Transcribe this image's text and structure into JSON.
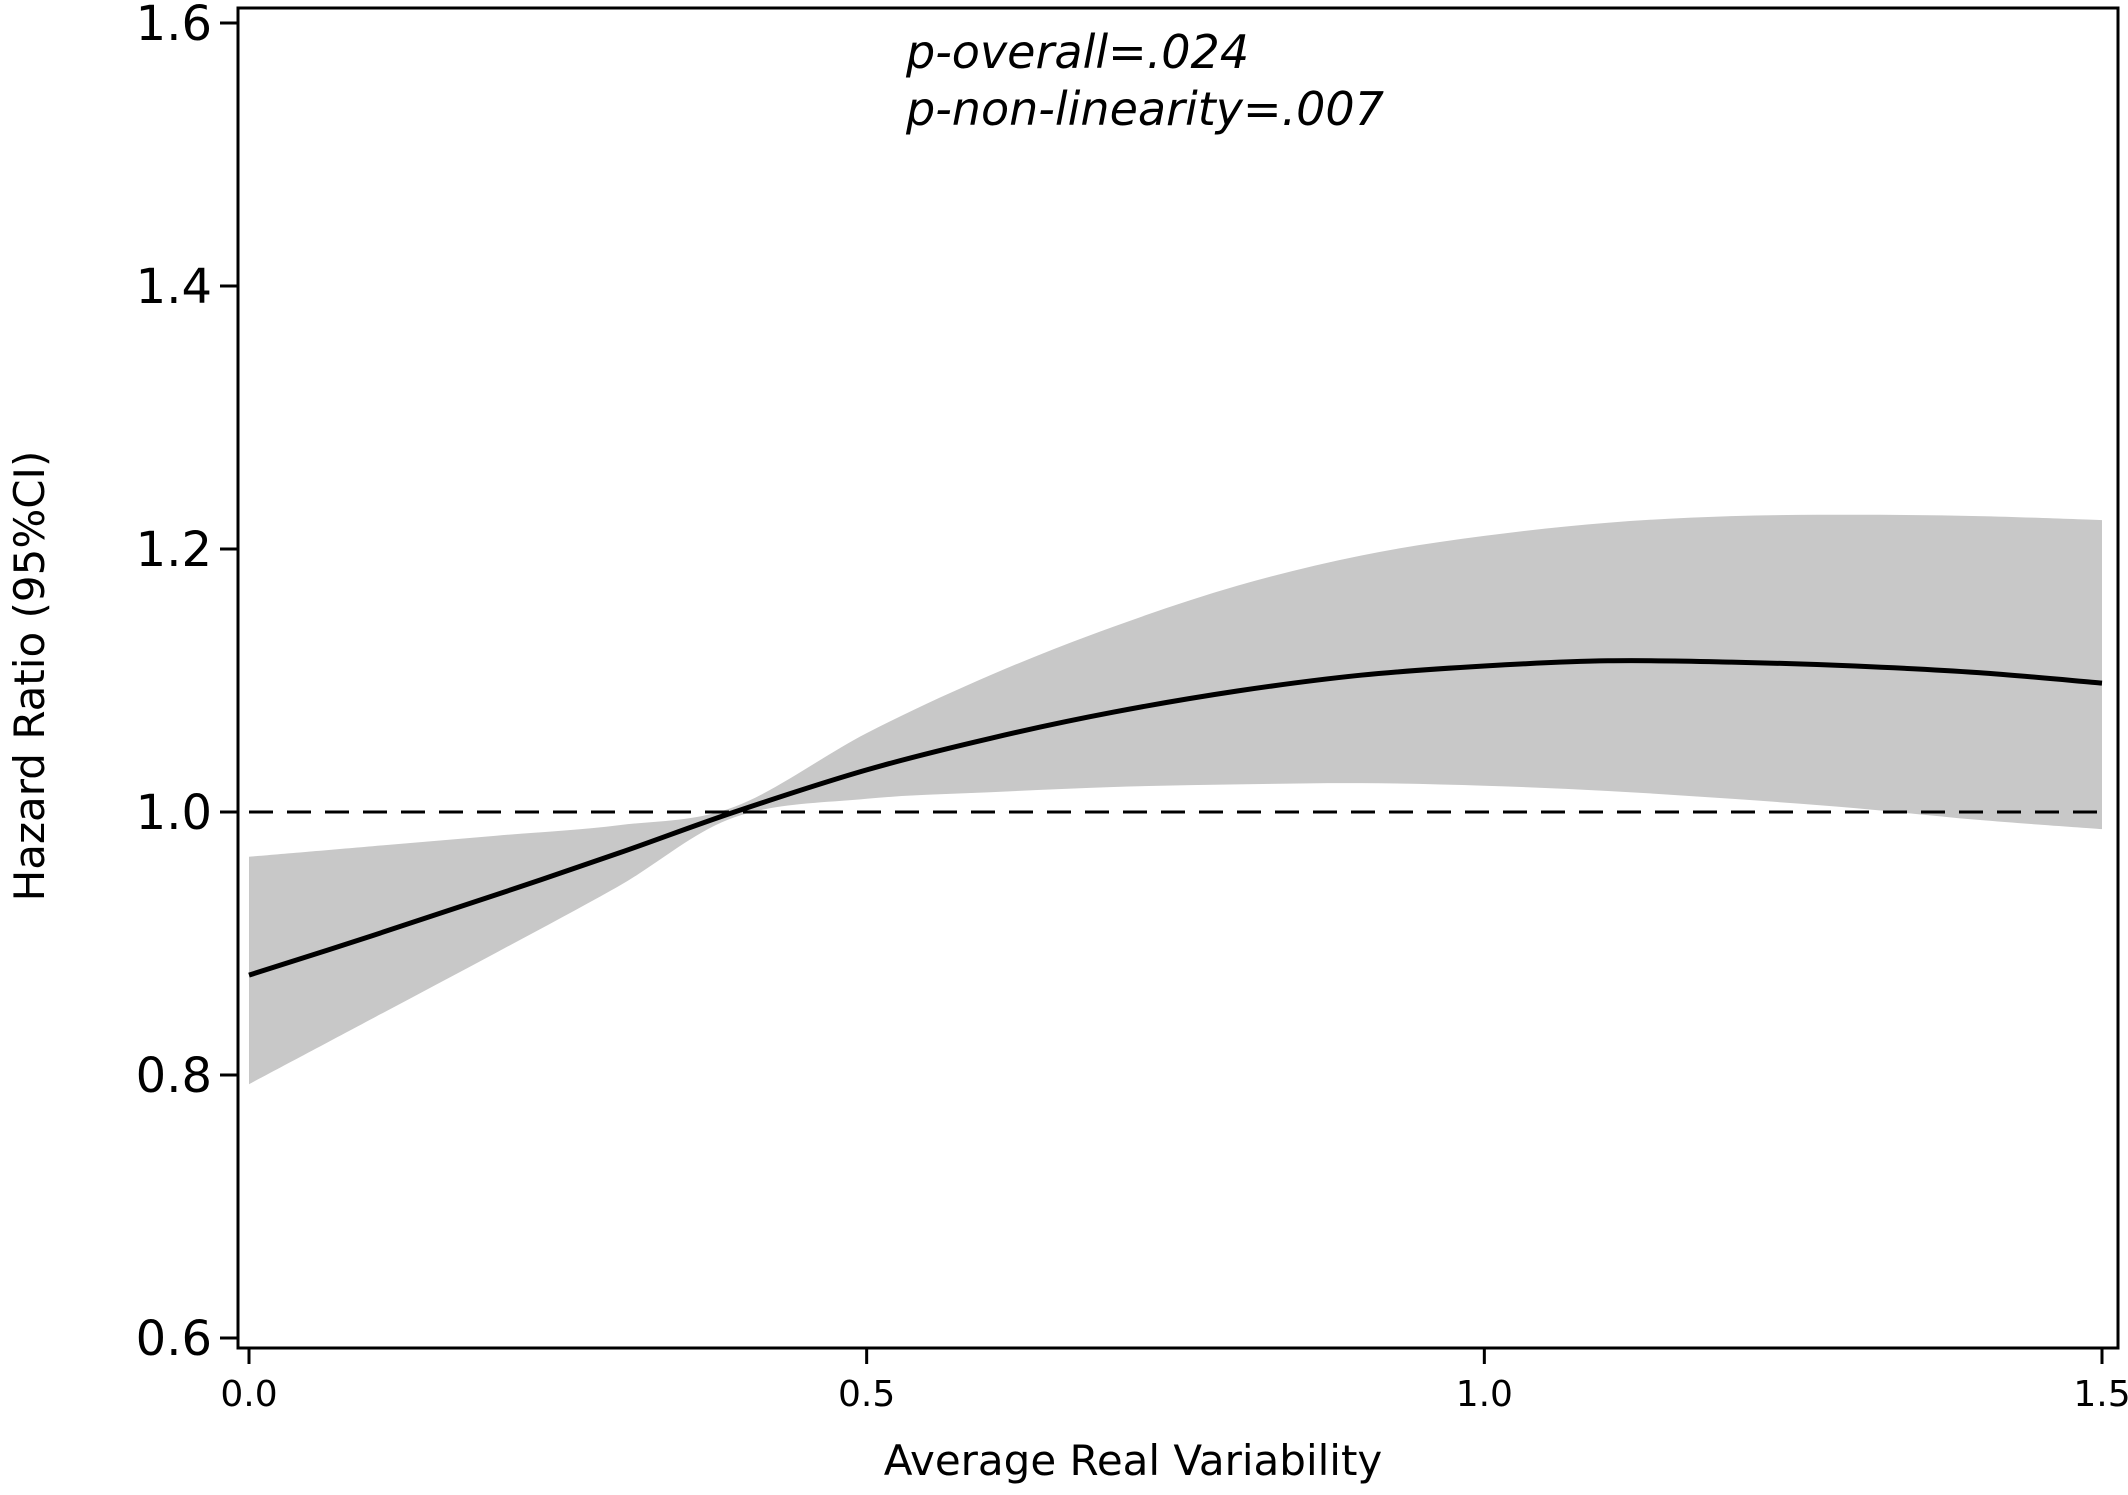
{
  "chart_data": {
    "type": "line",
    "title": "",
    "xlabel": "Average Real Variability",
    "ylabel": "Hazard Ratio (95%CI)",
    "xlim": [
      0.0,
      1.5
    ],
    "ylim": [
      0.6,
      1.6
    ],
    "x_ticks": [
      "0.0",
      "0.5",
      "1.0",
      "1.5"
    ],
    "y_ticks": [
      "0.6",
      "0.8",
      "1.0",
      "1.2",
      "1.4",
      "1.6"
    ],
    "grid": false,
    "legend": "none",
    "reference_line": {
      "y": 1.0,
      "style": "dashed"
    },
    "annotations": [
      "p-overall=.024",
      "p-non-linearity=.007"
    ],
    "x": [
      0.0,
      0.1,
      0.2,
      0.3,
      0.393,
      0.5,
      0.6,
      0.7,
      0.8,
      0.9,
      1.0,
      1.1,
      1.2,
      1.3,
      1.4,
      1.5
    ],
    "series": [
      {
        "values": [
          0.876,
          0.906,
          0.937,
          0.969,
          1.0,
          1.032,
          1.056,
          1.076,
          1.092,
          1.104,
          1.111,
          1.115,
          1.114,
          1.111,
          1.106,
          1.098
        ]
      }
    ],
    "ci_lower": [
      0.793,
      0.843,
      0.893,
      0.944,
      0.996,
      1.01,
      1.015,
      1.019,
      1.021,
      1.022,
      1.02,
      1.016,
      1.01,
      1.003,
      0.994,
      0.987
    ],
    "ci_upper": [
      0.966,
      0.974,
      0.982,
      0.99,
      1.004,
      1.06,
      1.104,
      1.141,
      1.172,
      1.195,
      1.21,
      1.22,
      1.225,
      1.226,
      1.225,
      1.222
    ],
    "colors": {
      "line": "#000000",
      "band": "#c8c8c8",
      "reference": "#000000"
    }
  }
}
